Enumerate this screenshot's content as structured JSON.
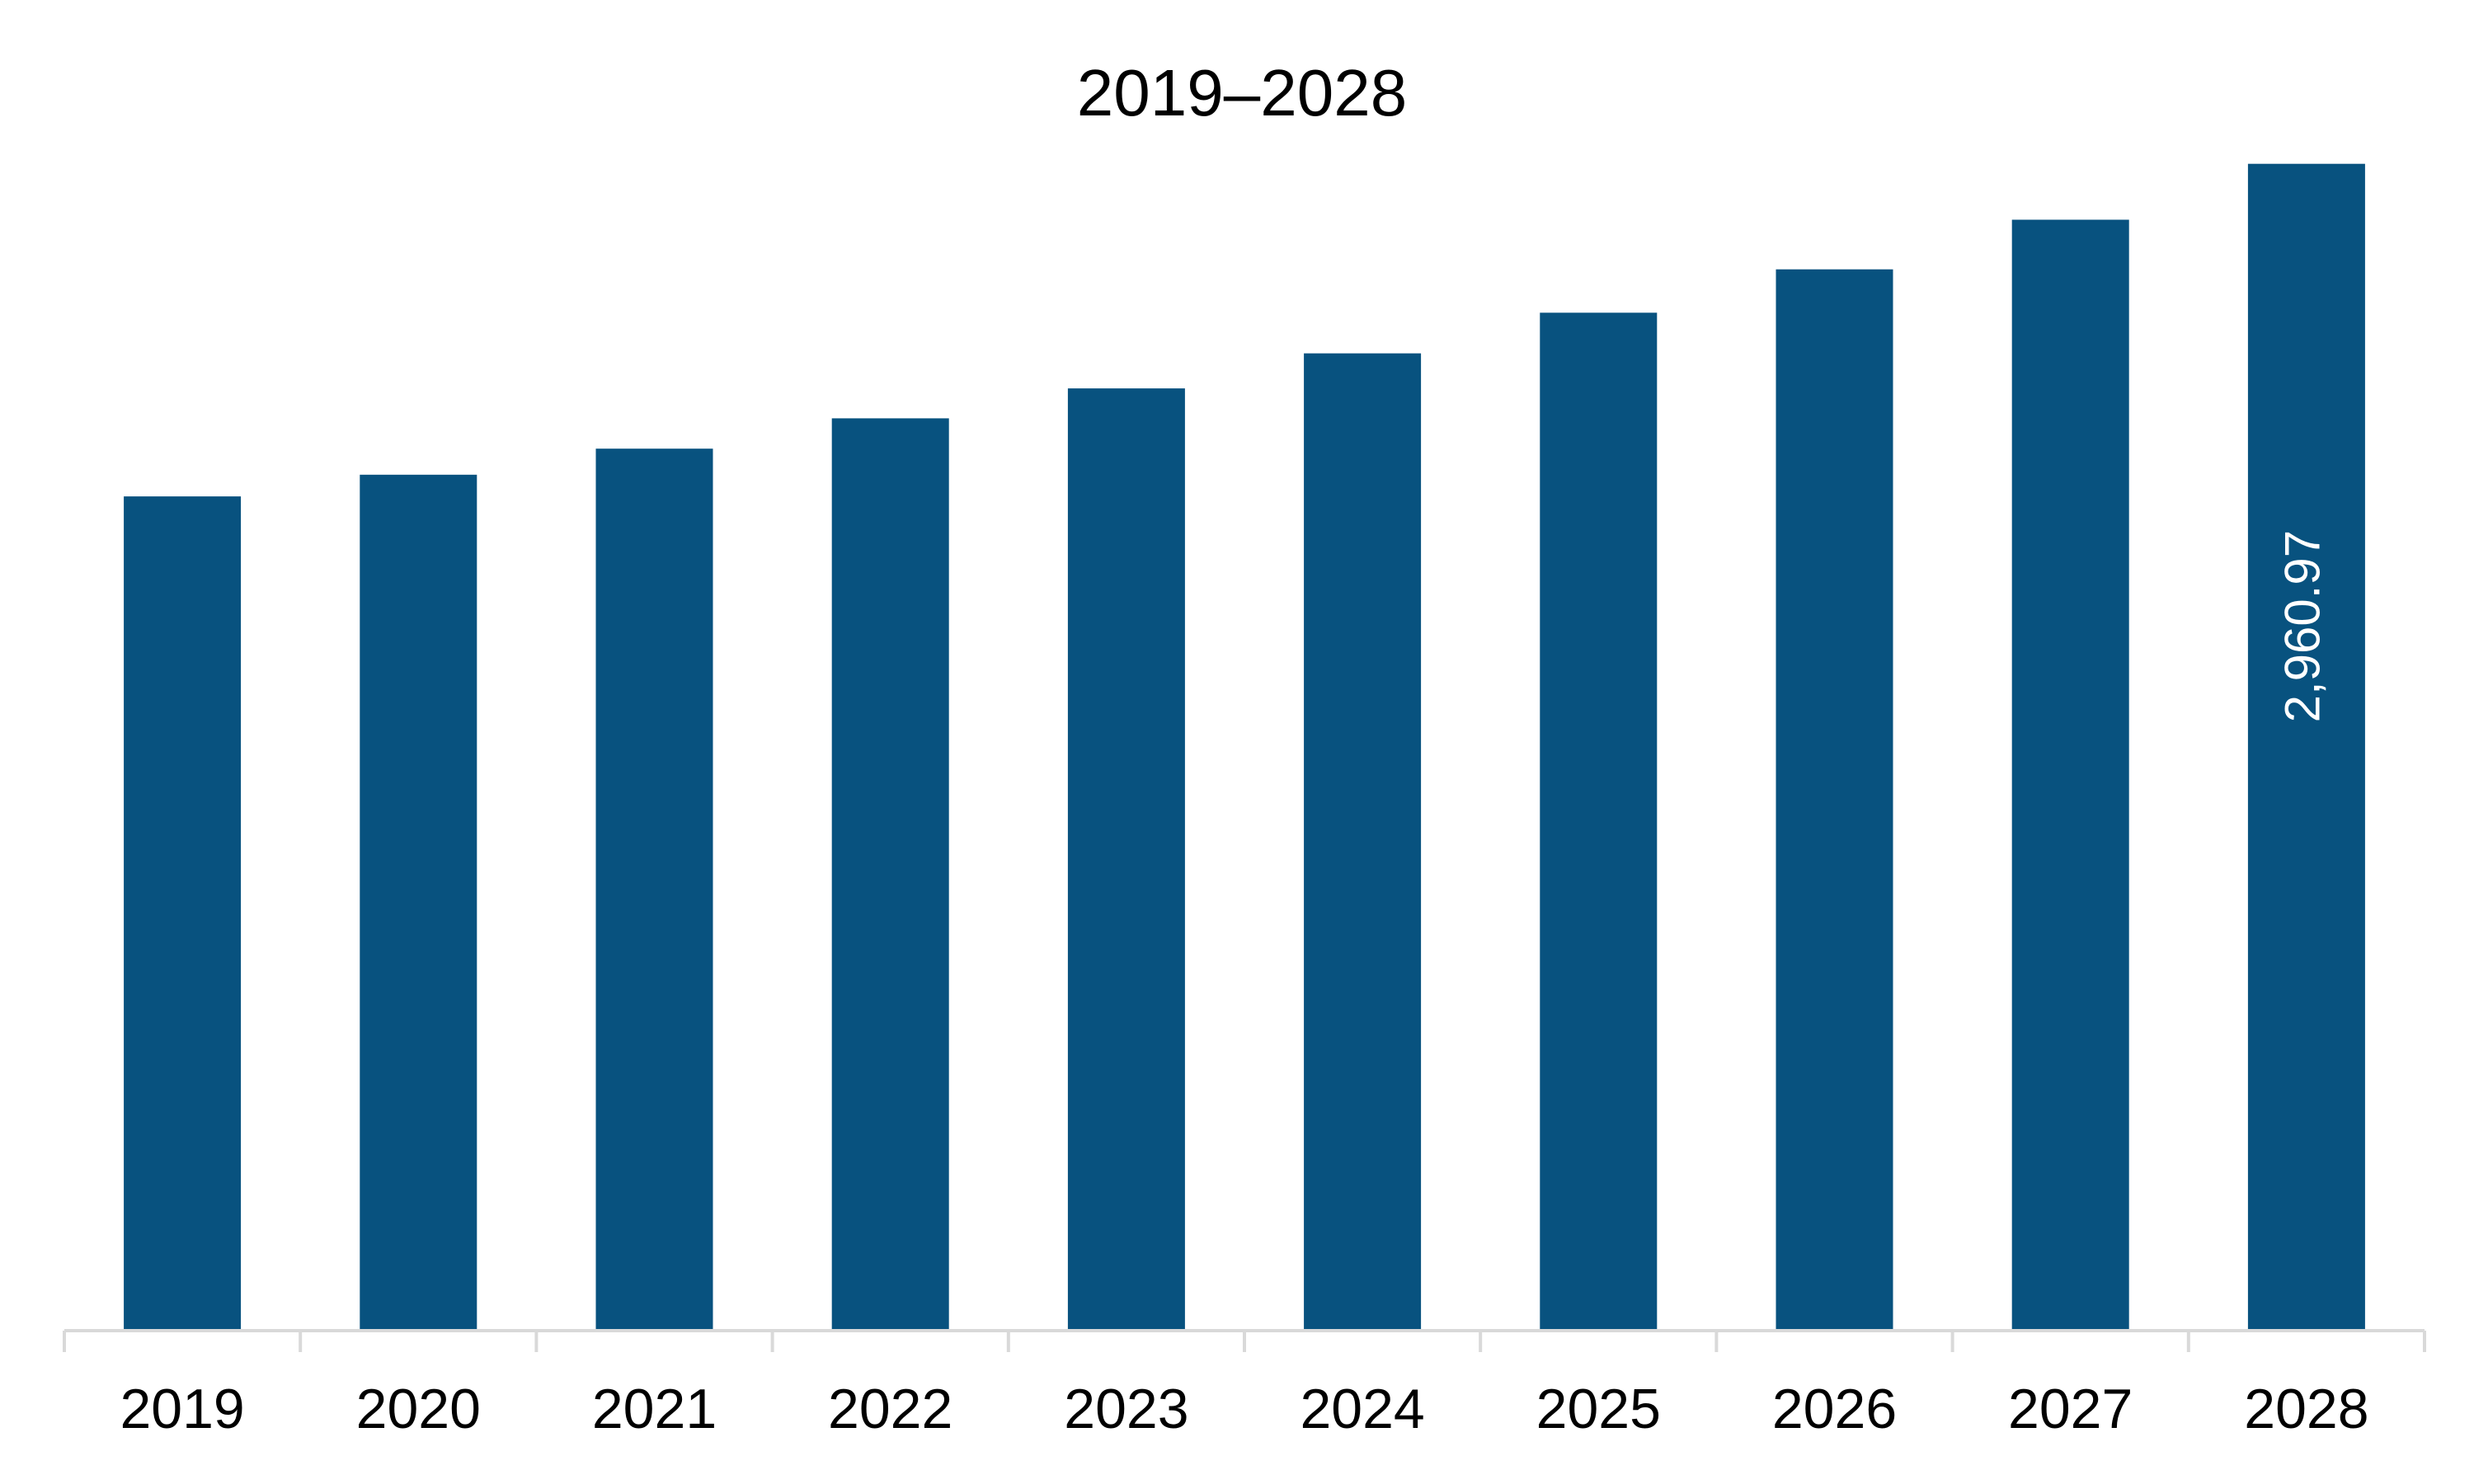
{
  "chart_data": {
    "type": "bar",
    "title": "2019–2028",
    "xlabel": "",
    "ylabel": "",
    "categories": [
      "2019",
      "2020",
      "2021",
      "2022",
      "2023",
      "2024",
      "2025",
      "2026",
      "2027",
      "2028"
    ],
    "values": [
      2117,
      2172,
      2238,
      2315,
      2391,
      2480,
      2583,
      2693,
      2819,
      2960.97
    ],
    "data_labels": [
      {
        "index": 9,
        "text": "2,960.97"
      }
    ],
    "ylim": [
      0,
      3000
    ],
    "grid": false,
    "legend": "none",
    "bar_color": "#08527f",
    "axis_color": "#d9d9d9"
  }
}
